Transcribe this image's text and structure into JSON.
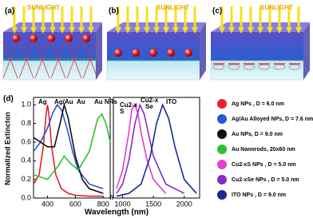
{
  "panels": [
    {
      "label": "(a)",
      "caption": "SUNLIGHT"
    },
    {
      "label": "(b)",
      "caption": "SUNLIGHT"
    },
    {
      "label": "(c)",
      "caption": "SUNLIGHT"
    }
  ],
  "chart_data": {
    "type": "line",
    "label": "(d)",
    "xlabel": "Wavelength (nm)",
    "ylabel": "Normalized Extincton",
    "xaxes": [
      {
        "xlim": [
          300,
          850
        ],
        "xticks": [
          400,
          600,
          800
        ]
      },
      {
        "xlim": [
          850,
          2250
        ],
        "xticks": [
          1000,
          1500,
          2000
        ]
      }
    ],
    "ylim": [
      0,
      1.08
    ],
    "yticks": [
      {
        "value": 0,
        "label": "0.0"
      },
      {
        "value": 0.2,
        "label": "0.2"
      },
      {
        "value": 0.4,
        "label": "0.4"
      },
      {
        "value": 0.6,
        "label": "0.6"
      },
      {
        "value": 0.8,
        "label": "0.8"
      },
      {
        "value": 1,
        "label": "1.0"
      }
    ],
    "annotations": [
      "Ag",
      "Ag/Au",
      "Au",
      "Au NRs",
      "Cu2-x",
      "S",
      "Cu2-x",
      "Se",
      "ITO"
    ],
    "series": [
      {
        "name": "Ag NPs , D = 6.0 nm",
        "color": "#e8202a",
        "x": [
          300,
          340,
          370,
          390,
          400,
          410,
          430,
          460,
          500,
          550,
          600,
          700,
          800
        ],
        "values": [
          0.15,
          0.25,
          0.55,
          0.9,
          1.0,
          0.9,
          0.55,
          0.25,
          0.1,
          0.05,
          0.03,
          0.02,
          0.02
        ]
      },
      {
        "name": "Ag/Au Alloyed NPs, D = 7.6 nm",
        "color": "#2a55d8",
        "x": [
          300,
          350,
          400,
          440,
          470,
          500,
          540,
          580,
          620,
          700,
          800
        ],
        "values": [
          0.5,
          0.6,
          0.75,
          0.92,
          1.0,
          0.95,
          0.75,
          0.5,
          0.3,
          0.15,
          0.1
        ]
      },
      {
        "name": "Au NPs, D = 9.0 nm",
        "color": "#111111",
        "x": [
          300,
          350,
          400,
          450,
          490,
          520,
          550,
          600,
          650,
          700,
          800
        ],
        "values": [
          0.65,
          0.6,
          0.55,
          0.55,
          0.8,
          1.0,
          0.85,
          0.45,
          0.2,
          0.1,
          0.05
        ]
      },
      {
        "name": "Au Nanorods, 20x60 nm",
        "color": "#2ec02e",
        "x": [
          300,
          400,
          480,
          520,
          560,
          620,
          700,
          760,
          790,
          820,
          850
        ],
        "values": [
          0.25,
          0.2,
          0.35,
          0.45,
          0.38,
          0.3,
          0.5,
          0.85,
          0.9,
          0.8,
          0.6
        ]
      },
      {
        "name": "Cu2-xS NPs , D = 5.0 nm",
        "color": "#e040d0",
        "x": [
          900,
          1000,
          1100,
          1150,
          1200,
          1250,
          1300,
          1400,
          1500,
          1700
        ],
        "values": [
          0.1,
          0.3,
          0.7,
          0.95,
          1.0,
          0.9,
          0.7,
          0.4,
          0.2,
          0.05
        ]
      },
      {
        "name": "Cu2-xSe NPs , D = 5.0 nm",
        "color": "#8a2bc8",
        "x": [
          900,
          1000,
          1100,
          1200,
          1280,
          1350,
          1400,
          1500,
          1700,
          2000
        ],
        "values": [
          0.05,
          0.15,
          0.4,
          0.8,
          1.0,
          0.9,
          0.75,
          0.45,
          0.15,
          0.05
        ]
      },
      {
        "name": "ITO NPs , D = 9.0 nm",
        "color": "#1a2a90",
        "x": [
          900,
          1100,
          1300,
          1450,
          1550,
          1650,
          1750,
          1850,
          2000,
          2200
        ],
        "values": [
          0.02,
          0.05,
          0.15,
          0.45,
          0.8,
          1.0,
          0.85,
          0.55,
          0.2,
          0.05
        ]
      }
    ]
  }
}
